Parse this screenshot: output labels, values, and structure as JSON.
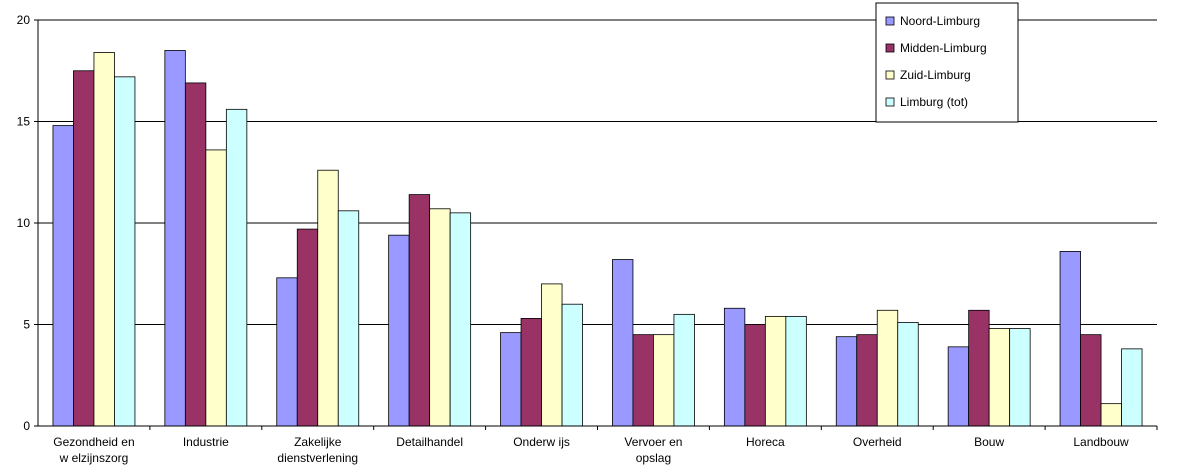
{
  "chart_data": {
    "type": "bar",
    "categories": [
      [
        "Gezondheid en",
        "w elzijnszorg"
      ],
      [
        "Industrie"
      ],
      [
        "Zakelijke",
        "dienstverlening"
      ],
      [
        "Detailhandel"
      ],
      [
        "Onderw ijs"
      ],
      [
        "Vervoer en",
        "opslag"
      ],
      [
        "Horeca"
      ],
      [
        "Overheid"
      ],
      [
        "Bouw"
      ],
      [
        "Landbouw"
      ]
    ],
    "series": [
      {
        "name": "Noord-Limburg",
        "color": "#9999ff",
        "values": [
          14.8,
          18.5,
          7.3,
          9.4,
          4.6,
          8.2,
          5.8,
          4.4,
          3.9,
          8.6
        ]
      },
      {
        "name": "Midden-Limburg",
        "color": "#993366",
        "values": [
          17.5,
          16.9,
          9.7,
          11.4,
          5.3,
          4.5,
          5.0,
          4.5,
          5.7,
          4.5
        ]
      },
      {
        "name": "Zuid-Limburg",
        "color": "#ffffcc",
        "values": [
          18.4,
          13.6,
          12.6,
          10.7,
          7.0,
          4.5,
          5.4,
          5.7,
          4.8,
          1.1
        ]
      },
      {
        "name": "Limburg (tot)",
        "color": "#ccffff",
        "values": [
          17.2,
          15.6,
          10.6,
          10.5,
          6.0,
          5.5,
          5.4,
          5.1,
          4.8,
          3.8
        ]
      }
    ],
    "ylim": [
      0,
      20
    ],
    "yticks": [
      "0",
      "5",
      "10",
      "15",
      "20"
    ],
    "grid": true,
    "legend": "top-right"
  }
}
